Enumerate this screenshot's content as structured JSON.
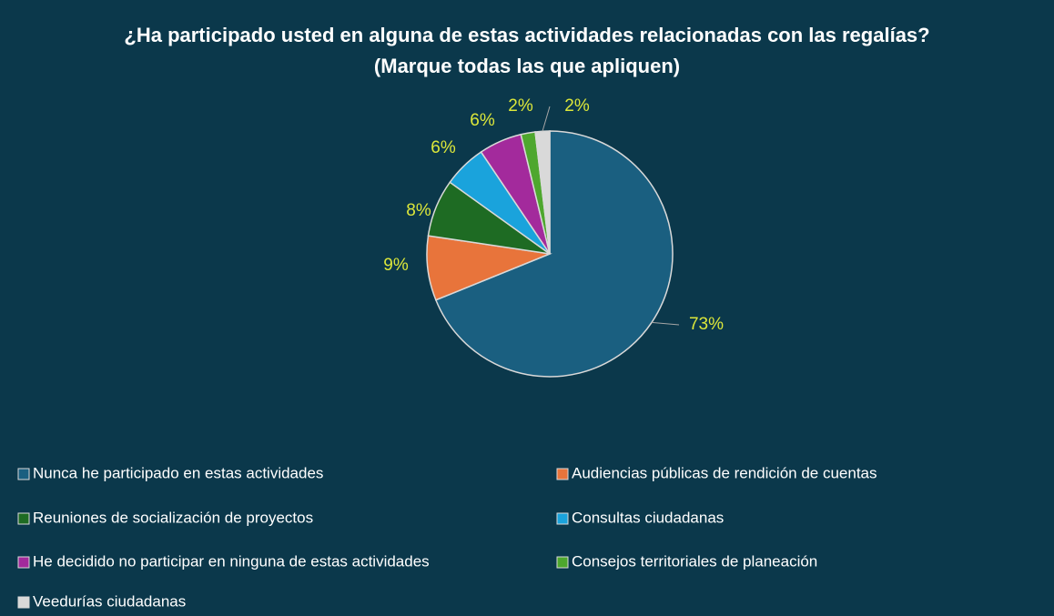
{
  "chart_data": {
    "type": "pie",
    "title": "¿Ha participado usted en alguna de estas actividades relacionadas con las regalías? (Marque todas las que apliquen)",
    "categories": [
      "Nunca he participado en estas actividades",
      "Audiencias públicas de rendición de cuentas",
      "Reuniones de socialización de proyectos",
      "Consultas ciudadanas",
      "He decidido no participar en ninguna de estas actividades",
      "Consejos territoriales de planeación",
      "Veedurías ciudadanas"
    ],
    "values": [
      73,
      9,
      8,
      6,
      6,
      2,
      2
    ],
    "colors": [
      "#1a5f80",
      "#e8743b",
      "#1e6b23",
      "#1aa3dc",
      "#a32a9c",
      "#4ea72e",
      "#d9d9d9"
    ],
    "legend": "bottom"
  }
}
